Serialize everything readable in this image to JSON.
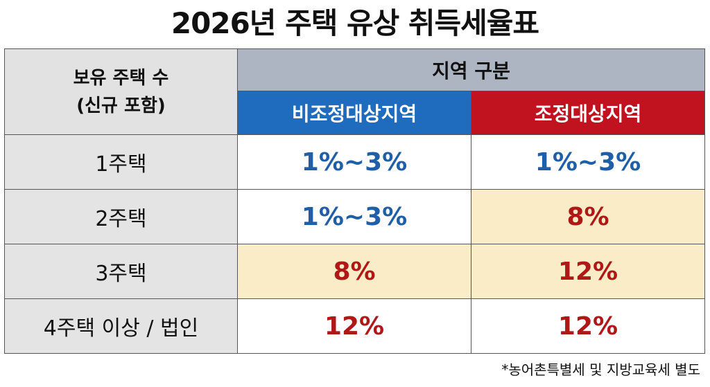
{
  "title": "2026년 주택 유상 취득세율표",
  "header": {
    "holding_line1": "보유 주택 수",
    "holding_line2": "(신규 포함)",
    "region": "지역 구분",
    "non_adjusted": "비조정대상지역",
    "adjusted": "조정대상지역"
  },
  "rows": [
    {
      "label": "1주택",
      "non_adjusted": "1%~3%",
      "adjusted": "1%~3%"
    },
    {
      "label": "2주택",
      "non_adjusted": "1%~3%",
      "adjusted": "8%"
    },
    {
      "label": "3주택",
      "non_adjusted": "8%",
      "adjusted": "12%"
    },
    {
      "label": "4주택 이상 / 법인",
      "non_adjusted": "12%",
      "adjusted": "12%"
    }
  ],
  "footnote": "*농어촌특별세 및 지방교육세 별도",
  "colors": {
    "blue_header": "#1f6bbd",
    "red_header": "#c1121f",
    "region_header": "#adb5c3",
    "highlight": "#faecc6",
    "blue_text": "#1e5fa8",
    "red_text": "#b01818"
  }
}
